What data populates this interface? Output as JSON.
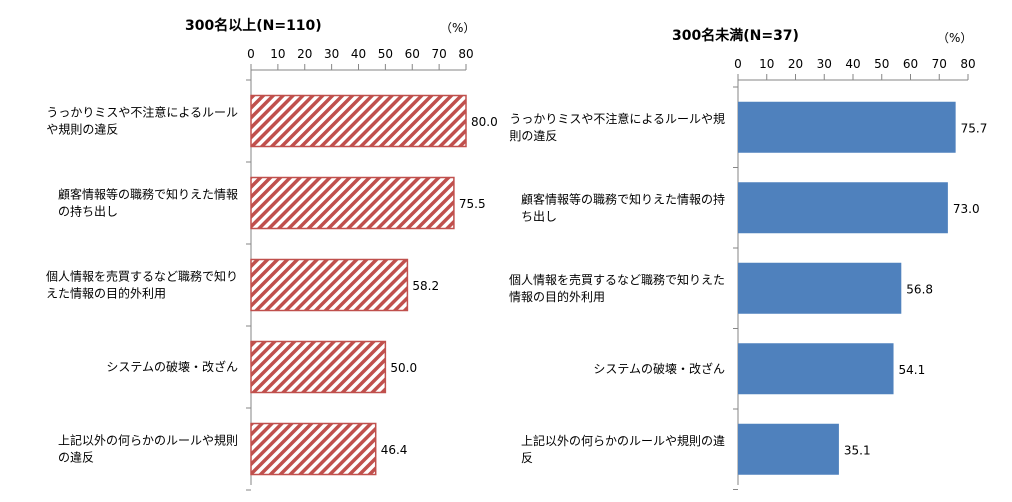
{
  "chart_data": [
    {
      "type": "bar",
      "orientation": "horizontal",
      "title": "300名以上(N=110)",
      "unit_label": "（%）",
      "categories": [
        [
          "うっかりミスや不注意によるルール",
          "や規則の違反"
        ],
        [
          "顧客情報等の職務で知りえた情報",
          "の持ち出し"
        ],
        [
          "個人情報を売買するなど職務で知り",
          "えた情報の目的外利用"
        ],
        [
          "システムの破壊・改ざん"
        ],
        [
          "上記以外の何らかのルールや規則",
          "の違反"
        ]
      ],
      "values": [
        80.0,
        75.5,
        58.2,
        50.0,
        46.4
      ],
      "value_labels": [
        "80.0",
        "75.5",
        "58.2",
        "50.0",
        "46.4"
      ],
      "xlim": [
        0,
        80
      ],
      "ticks": [
        "0",
        "10",
        "20",
        "30",
        "40",
        "50",
        "60",
        "70",
        "80"
      ],
      "axis_position": "top",
      "grid": false,
      "bar_style": "diagonal-hatch",
      "colors": {
        "bar": "#c0504d",
        "hatch_bg": "#ffffff"
      }
    },
    {
      "type": "bar",
      "orientation": "horizontal",
      "title": "300名未満(N=37)",
      "unit_label": "（%）",
      "categories": [
        [
          "うっかりミスや不注意によるルールや規",
          "則の違反"
        ],
        [
          "顧客情報等の職務で知りえた情報の持",
          "ち出し"
        ],
        [
          "個人情報を売買するなど職務で知りえた",
          "情報の目的外利用"
        ],
        [
          "システムの破壊・改ざん"
        ],
        [
          "上記以外の何らかのルールや規則の違",
          "反"
        ]
      ],
      "values": [
        75.7,
        73.0,
        56.8,
        54.1,
        35.1
      ],
      "value_labels": [
        "75.7",
        "73.0",
        "56.8",
        "54.1",
        "35.1"
      ],
      "xlim": [
        0,
        80
      ],
      "ticks": [
        "0",
        "10",
        "20",
        "30",
        "40",
        "50",
        "60",
        "70",
        "80"
      ],
      "axis_position": "top",
      "grid": false,
      "bar_style": "solid",
      "colors": {
        "bar": "#4f81bd"
      }
    }
  ]
}
